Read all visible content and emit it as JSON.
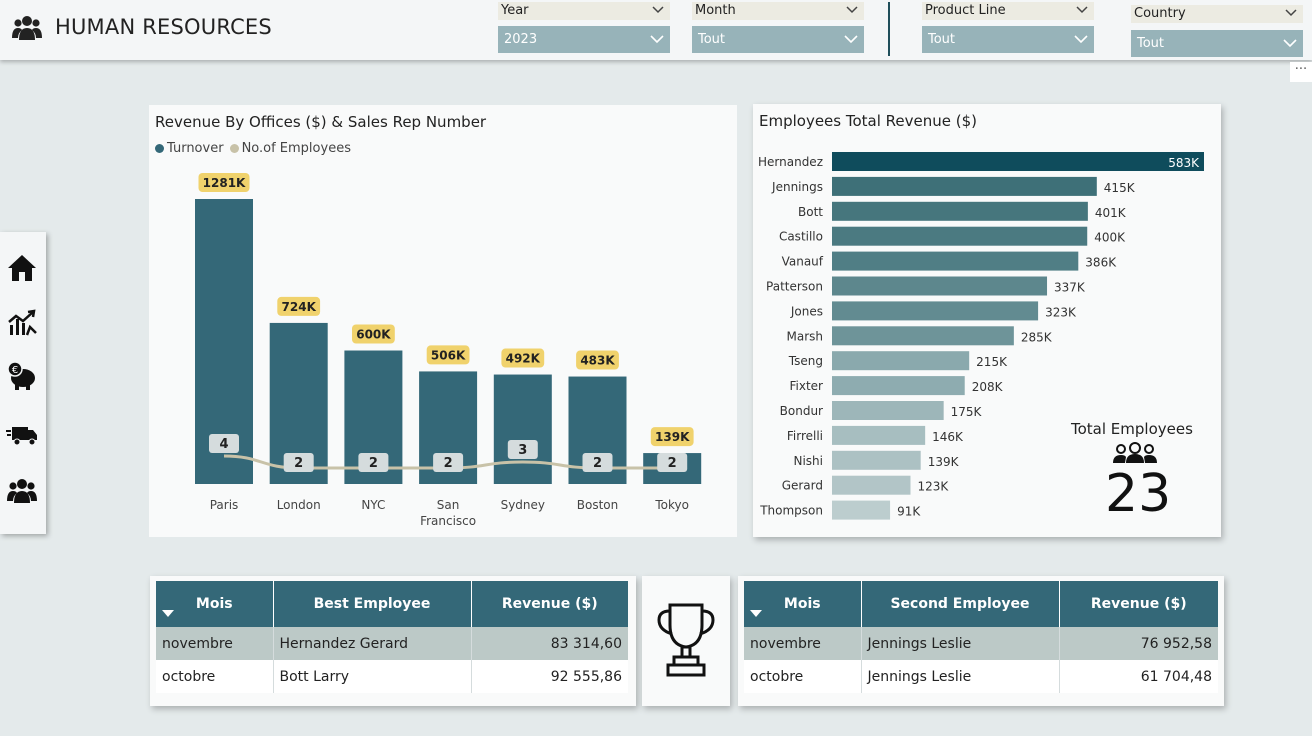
{
  "header": {
    "title": "HUMAN RESOURCES",
    "slicers": [
      {
        "label": "Year",
        "value": "2023"
      },
      {
        "label": "Month",
        "value": "Tout"
      },
      {
        "label": "Product Line",
        "value": "Tout"
      },
      {
        "label": "Country",
        "value": "Tout"
      }
    ],
    "more_label": "···"
  },
  "nav": {
    "items": [
      "home-icon",
      "trend-chart-icon",
      "piggy-bank-icon",
      "delivery-truck-icon",
      "people-group-icon"
    ]
  },
  "colors": {
    "primary": "#346878",
    "accent_label": "#f0d26c",
    "line": "#c8c2a8"
  },
  "offices_panel": {
    "title": "Revenue By Offices ($) & Sales Rep Number",
    "legend": [
      "Turnover",
      "No.of Employees"
    ]
  },
  "chart_data": [
    {
      "type": "bar",
      "title": "Revenue By Offices ($) & Sales Rep Number",
      "categories": [
        "Paris",
        "London",
        "NYC",
        "San Francisco",
        "Sydney",
        "Boston",
        "Tokyo"
      ],
      "category_lines": [
        [
          "Paris"
        ],
        [
          "London"
        ],
        [
          "NYC"
        ],
        [
          "San",
          "Francisco"
        ],
        [
          "Sydney"
        ],
        [
          "Boston"
        ],
        [
          "Tokyo"
        ]
      ],
      "series": [
        {
          "name": "Turnover",
          "values": [
            1281,
            724,
            600,
            506,
            492,
            483,
            139
          ],
          "labels": [
            "1281K",
            "724K",
            "600K",
            "506K",
            "492K",
            "483K",
            "139K"
          ]
        },
        {
          "name": "No.of Employees",
          "values": [
            4,
            2,
            2,
            2,
            3,
            2,
            2
          ],
          "labels": [
            "4",
            "2",
            "2",
            "2",
            "3",
            "2",
            "2"
          ]
        }
      ],
      "legend": "top-left"
    },
    {
      "type": "bar",
      "title": "Employees Total Revenue ($)",
      "orientation": "horizontal",
      "categories": [
        "Hernandez",
        "Jennings",
        "Bott",
        "Castillo",
        "Vanauf",
        "Patterson",
        "Jones",
        "Marsh",
        "Tseng",
        "Fixter",
        "Bondur",
        "Firrelli",
        "Nishi",
        "Gerard",
        "Thompson"
      ],
      "values": [
        583,
        415,
        401,
        400,
        386,
        337,
        323,
        285,
        215,
        208,
        175,
        146,
        139,
        123,
        91
      ],
      "labels": [
        "583K",
        "415K",
        "401K",
        "400K",
        "386K",
        "337K",
        "323K",
        "285K",
        "215K",
        "208K",
        "175K",
        "146K",
        "139K",
        "123K",
        "91K"
      ]
    }
  ],
  "employees_panel": {
    "title": "Employees Total Revenue ($)",
    "kpi_label": "Total Employees",
    "kpi_value": "23"
  },
  "best_table": {
    "headers": [
      "Mois",
      "Best Employee",
      "Revenue ($)"
    ],
    "rows": [
      [
        "novembre",
        "Hernandez Gerard",
        "83 314,60"
      ],
      [
        "octobre",
        "Bott Larry",
        "92 555,86"
      ]
    ]
  },
  "second_table": {
    "headers": [
      "Mois",
      "Second Employee",
      "Revenue ($)"
    ],
    "rows": [
      [
        "novembre",
        "Jennings Leslie",
        "76 952,58"
      ],
      [
        "octobre",
        "Jennings Leslie",
        "61 704,48"
      ]
    ]
  }
}
